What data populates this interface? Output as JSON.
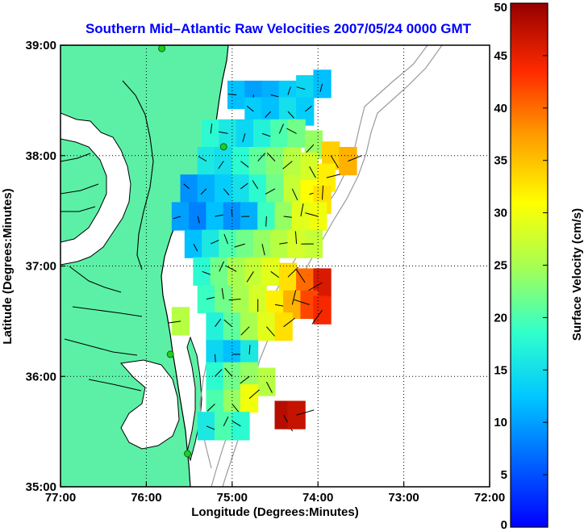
{
  "chart_data": {
    "type": "heatmap",
    "title": "Southern Mid–Atlantic Raw Velocities 2007/05/24 0000 GMT",
    "xlabel": "Longitude (Degrees:Minutes)",
    "ylabel": "Latitude (Degrees:Minutes)",
    "xlim": [
      -77,
      -72
    ],
    "ylim": [
      35,
      39
    ],
    "x_ticks": [
      {
        "value": -77,
        "label": "77:00"
      },
      {
        "value": -76,
        "label": "76:00"
      },
      {
        "value": -75,
        "label": "75:00"
      },
      {
        "value": -74,
        "label": "74:00"
      },
      {
        "value": -73,
        "label": "73:00"
      },
      {
        "value": -72,
        "label": "72:00"
      }
    ],
    "y_ticks": [
      {
        "value": 35,
        "label": "35:00"
      },
      {
        "value": 36,
        "label": "36:00"
      },
      {
        "value": 37,
        "label": "37:00"
      },
      {
        "value": 38,
        "label": "38:00"
      },
      {
        "value": 39,
        "label": "39:00"
      }
    ],
    "grid": true,
    "colorbar": {
      "label": "Surface Velocity (cm/s)",
      "min": 0,
      "max": 50,
      "ticks": [
        "0",
        "5",
        "10",
        "15",
        "20",
        "25",
        "30",
        "35",
        "40",
        "45",
        "50"
      ],
      "colormap": "jet",
      "placement": "right"
    },
    "land_color": "#5cf0a6",
    "coast_color": "#000000",
    "bathymetry_color": "#9a9a9a",
    "station_color": "#22cc22",
    "stations": [
      {
        "lon": -75.82,
        "lat": 38.97
      },
      {
        "lon": -75.1,
        "lat": 38.08
      },
      {
        "lon": -75.72,
        "lat": 36.2
      },
      {
        "lon": -75.52,
        "lat": 35.3
      }
    ],
    "velocity_regions": [
      {
        "name": "north",
        "cells": [
          [
            -74.95,
            38.55,
            12
          ],
          [
            -74.75,
            38.55,
            10
          ],
          [
            -74.55,
            38.55,
            11
          ],
          [
            -74.35,
            38.55,
            13
          ],
          [
            -74.15,
            38.6,
            14
          ],
          [
            -73.95,
            38.65,
            12
          ],
          [
            -74.75,
            38.4,
            13
          ],
          [
            -74.55,
            38.4,
            12
          ],
          [
            -74.35,
            38.4,
            15
          ],
          [
            -74.15,
            38.4,
            13
          ]
        ]
      },
      {
        "name": "central",
        "cells": [
          [
            -75.25,
            38.2,
            18
          ],
          [
            -75.05,
            38.2,
            16
          ],
          [
            -74.85,
            38.2,
            14
          ],
          [
            -74.65,
            38.2,
            17
          ],
          [
            -74.45,
            38.2,
            20
          ],
          [
            -74.25,
            38.2,
            22
          ],
          [
            -74.05,
            38.1,
            24
          ],
          [
            -73.85,
            38.0,
            34
          ],
          [
            -73.65,
            37.95,
            36
          ],
          [
            -75.3,
            37.95,
            16
          ],
          [
            -75.1,
            37.95,
            15
          ],
          [
            -74.9,
            37.95,
            18
          ],
          [
            -74.7,
            37.95,
            21
          ],
          [
            -74.5,
            37.95,
            23
          ],
          [
            -74.3,
            37.95,
            26
          ],
          [
            -74.1,
            37.9,
            28
          ],
          [
            -73.9,
            37.8,
            32
          ],
          [
            -75.5,
            37.7,
            9
          ],
          [
            -75.3,
            37.7,
            11
          ],
          [
            -75.1,
            37.7,
            13
          ],
          [
            -74.9,
            37.7,
            15
          ],
          [
            -74.7,
            37.7,
            18
          ],
          [
            -74.5,
            37.7,
            22
          ],
          [
            -74.3,
            37.7,
            27
          ],
          [
            -74.1,
            37.65,
            31
          ],
          [
            -73.95,
            37.6,
            33
          ],
          [
            -75.6,
            37.45,
            10
          ],
          [
            -75.4,
            37.45,
            8
          ],
          [
            -75.2,
            37.45,
            12
          ],
          [
            -75.0,
            37.45,
            9
          ],
          [
            -74.8,
            37.45,
            11
          ],
          [
            -74.6,
            37.45,
            19
          ],
          [
            -74.4,
            37.45,
            24
          ],
          [
            -74.2,
            37.45,
            29
          ],
          [
            -74.0,
            37.45,
            30
          ],
          [
            -75.45,
            37.2,
            12
          ],
          [
            -75.25,
            37.2,
            16
          ],
          [
            -75.05,
            37.2,
            20
          ],
          [
            -74.85,
            37.2,
            22
          ],
          [
            -74.65,
            37.2,
            24
          ],
          [
            -74.45,
            37.2,
            26
          ],
          [
            -74.25,
            37.2,
            28
          ],
          [
            -74.05,
            37.2,
            27
          ],
          [
            -75.35,
            36.95,
            18
          ],
          [
            -75.15,
            36.95,
            22
          ],
          [
            -74.95,
            36.95,
            25
          ],
          [
            -74.75,
            36.95,
            27
          ],
          [
            -74.55,
            36.95,
            29
          ],
          [
            -74.35,
            36.9,
            33
          ],
          [
            -74.15,
            36.85,
            40
          ],
          [
            -73.95,
            36.85,
            46
          ],
          [
            -75.3,
            36.7,
            19
          ],
          [
            -75.1,
            36.7,
            22
          ],
          [
            -74.9,
            36.7,
            25
          ],
          [
            -74.7,
            36.7,
            28
          ],
          [
            -74.5,
            36.65,
            32
          ],
          [
            -74.3,
            36.65,
            36
          ],
          [
            -74.1,
            36.65,
            42
          ],
          [
            -73.95,
            36.6,
            44
          ],
          [
            -75.2,
            36.45,
            17
          ],
          [
            -75.0,
            36.45,
            21
          ],
          [
            -74.8,
            36.45,
            25
          ],
          [
            -74.6,
            36.45,
            29
          ],
          [
            -74.4,
            36.45,
            33
          ]
        ]
      },
      {
        "name": "south",
        "cells": [
          [
            -75.6,
            36.5,
            26
          ],
          [
            -75.2,
            36.2,
            14
          ],
          [
            -75.0,
            36.2,
            12
          ],
          [
            -74.8,
            36.2,
            16
          ],
          [
            -75.2,
            36.0,
            18
          ],
          [
            -75.0,
            36.0,
            22
          ],
          [
            -74.8,
            36.0,
            24
          ],
          [
            -74.6,
            35.95,
            26
          ],
          [
            -75.2,
            35.75,
            20
          ],
          [
            -75.0,
            35.75,
            24
          ],
          [
            -74.8,
            35.8,
            30
          ],
          [
            -75.3,
            35.55,
            16
          ],
          [
            -75.1,
            35.55,
            20
          ],
          [
            -74.9,
            35.55,
            18
          ],
          [
            -74.4,
            35.65,
            48
          ],
          [
            -74.25,
            35.65,
            47
          ]
        ]
      }
    ]
  }
}
